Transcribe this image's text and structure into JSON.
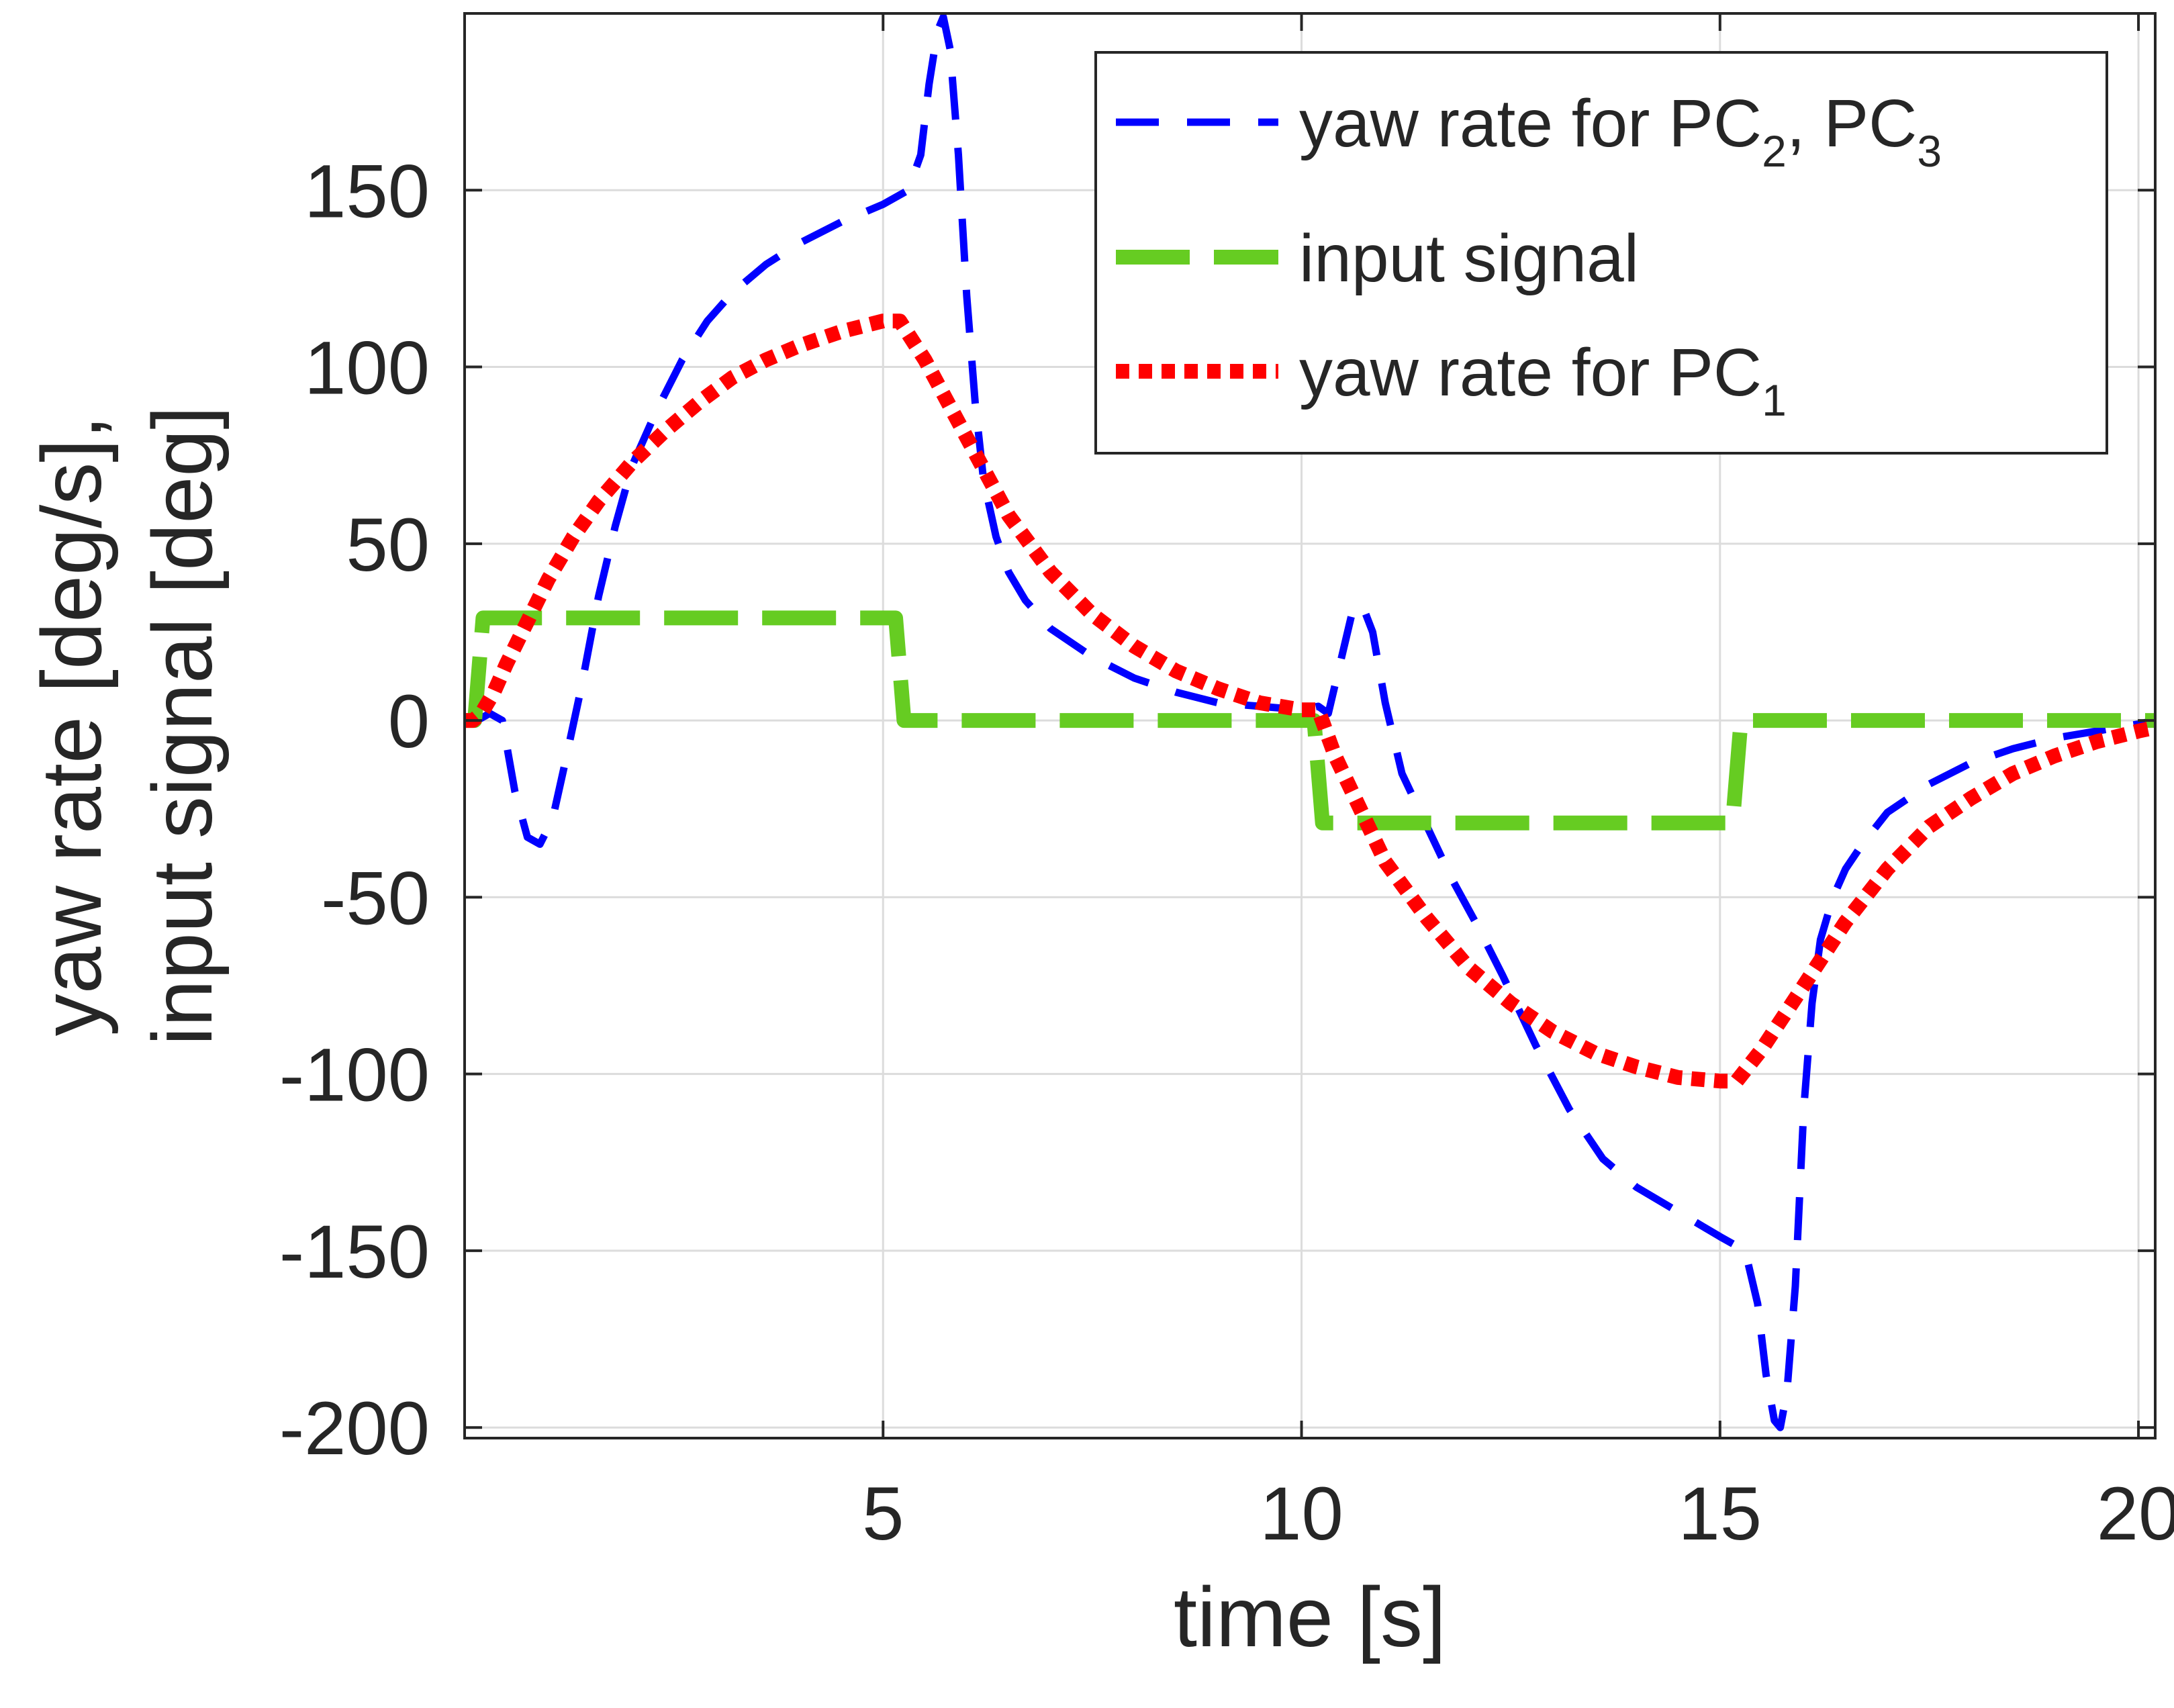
{
  "chart_data": {
    "type": "line",
    "title": "",
    "xlabel": "time [s]",
    "ylabel_lines": [
      "yaw rate [deg/s],",
      "input signal [deg]"
    ],
    "xlim": [
      0,
      20.2
    ],
    "ylim": [
      -203,
      200
    ],
    "grid": true,
    "x_ticks": [
      5,
      10,
      15,
      20
    ],
    "y_ticks": [
      150,
      100,
      50,
      0,
      -50,
      -100,
      -150,
      -200
    ],
    "x_tick_labels": [
      "5",
      "10",
      "15",
      "20"
    ],
    "y_tick_labels": [
      "150",
      "100",
      "50",
      "0",
      "-50",
      "-100",
      "-150",
      "-200"
    ],
    "legend_position": "top-right",
    "series": [
      {
        "name": "yaw rate for PC2, PC3",
        "legend_main": "yaw rate for PC",
        "legend_sub_1": "2",
        "legend_mid": ", PC",
        "legend_sub_2": "3",
        "color": "#0000ff",
        "style": "dashed",
        "x": [
          0.0,
          0.15,
          0.3,
          0.45,
          0.6,
          0.75,
          0.9,
          1.05,
          1.2,
          1.4,
          1.6,
          1.8,
          2.0,
          2.3,
          2.6,
          2.9,
          3.2,
          3.6,
          4.0,
          4.5,
          5.0,
          5.3,
          5.45,
          5.55,
          5.65,
          5.72,
          5.8,
          5.9,
          6.0,
          6.1,
          6.2,
          6.35,
          6.5,
          6.7,
          7.0,
          7.5,
          8.0,
          8.5,
          9.0,
          9.5,
          10.0,
          10.2,
          10.32,
          10.45,
          10.6,
          10.72,
          10.85,
          11.0,
          11.2,
          11.5,
          11.8,
          12.1,
          12.4,
          12.8,
          13.2,
          13.6,
          14.0,
          14.5,
          15.0,
          15.3,
          15.45,
          15.55,
          15.65,
          15.72,
          15.8,
          15.9,
          16.0,
          16.1,
          16.2,
          16.35,
          16.5,
          16.7,
          17.0,
          17.5,
          18.0,
          18.5,
          19.0,
          19.5,
          20.0,
          20.2
        ],
        "y": [
          0,
          0,
          2,
          0,
          -20,
          -33,
          -35,
          -28,
          -12,
          10,
          35,
          55,
          72,
          88,
          102,
          113,
          121,
          129,
          135,
          141,
          146,
          150,
          160,
          180,
          195,
          199,
          190,
          160,
          120,
          90,
          68,
          52,
          42,
          34,
          26,
          18,
          12,
          8,
          5,
          4,
          3,
          4,
          2,
          15,
          30,
          33,
          25,
          5,
          -15,
          -30,
          -45,
          -58,
          -72,
          -92,
          -110,
          -124,
          -132,
          -139,
          -146,
          -150,
          -165,
          -185,
          -198,
          -200,
          -190,
          -160,
          -110,
          -80,
          -62,
          -50,
          -42,
          -35,
          -26,
          -18,
          -12,
          -8,
          -5,
          -3,
          -1,
          0
        ]
      },
      {
        "name": "input signal",
        "legend_main": "input signal",
        "color": "#66cc22",
        "style": "dashed",
        "x": [
          0.0,
          0.12,
          0.22,
          5.05,
          5.15,
          5.25,
          10.05,
          10.15,
          10.25,
          15.05,
          15.15,
          15.25,
          20.2
        ],
        "y": [
          0,
          0,
          29,
          29,
          29,
          0,
          0,
          0,
          -29,
          -29,
          -29,
          0,
          0
        ]
      },
      {
        "name": "yaw rate for PC1",
        "legend_main": "yaw rate for PC",
        "legend_sub_1": "1",
        "color": "#ff0000",
        "style": "dotted",
        "x": [
          0.0,
          0.1,
          0.2,
          0.35,
          0.5,
          0.75,
          1.0,
          1.3,
          1.6,
          2.0,
          2.4,
          2.8,
          3.2,
          3.6,
          4.0,
          4.5,
          5.0,
          5.2,
          5.5,
          6.0,
          6.5,
          7.0,
          7.5,
          8.0,
          8.5,
          9.0,
          9.5,
          10.0,
          10.2,
          10.4,
          10.7,
          11.0,
          11.5,
          12.0,
          12.5,
          13.0,
          13.5,
          14.0,
          14.5,
          15.0,
          15.2,
          15.5,
          16.0,
          16.5,
          17.0,
          17.5,
          18.0,
          18.5,
          19.0,
          19.5,
          20.0,
          20.2
        ],
        "y": [
          0,
          0,
          2,
          8,
          16,
          28,
          40,
          52,
          62,
          73,
          82,
          90,
          97,
          102,
          106,
          110,
          113,
          113,
          102,
          80,
          58,
          42,
          30,
          21,
          14,
          9,
          5,
          3,
          3,
          -10,
          -25,
          -40,
          -56,
          -70,
          -80,
          -88,
          -94,
          -98,
          -101,
          -102,
          -102,
          -93,
          -75,
          -57,
          -42,
          -30,
          -22,
          -15,
          -10,
          -6,
          -3,
          -2
        ]
      }
    ]
  }
}
